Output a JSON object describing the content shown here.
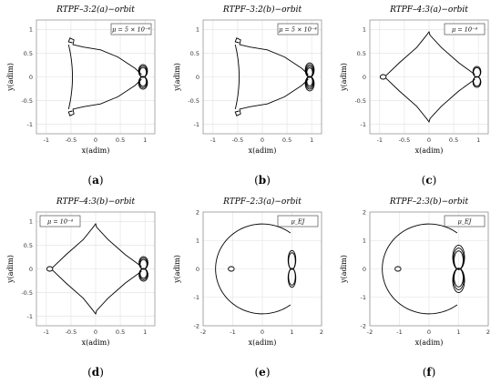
{
  "panels": [
    {
      "id": "a",
      "title": "RTPF–3:2(a)−orbit",
      "legend": "μ = 5 × 10⁻⁴",
      "caption": "a",
      "xlabel": "x(adim)",
      "ylabel": "y(adim)",
      "xlim": [
        -1.2,
        1.2
      ],
      "ylim": [
        -1.2,
        1.2
      ],
      "xticks": [
        -1,
        -0.5,
        0,
        0.5,
        1
      ],
      "yticks": [
        -1,
        -0.5,
        0,
        0.5,
        1
      ],
      "grid": true,
      "legend_position": "top-right"
    },
    {
      "id": "b",
      "title": "RTPF–3:2(b)−orbit",
      "legend": "μ = 5 × 10⁻⁴",
      "caption": "b",
      "xlabel": "x(adim)",
      "ylabel": "y(adim)",
      "xlim": [
        -1.2,
        1.2
      ],
      "ylim": [
        -1.2,
        1.2
      ],
      "xticks": [
        -1,
        -0.5,
        0,
        0.5,
        1
      ],
      "yticks": [
        -1,
        -0.5,
        0,
        0.5,
        1
      ],
      "grid": true,
      "legend_position": "top-right"
    },
    {
      "id": "c",
      "title": "RTPF–4:3(a)−orbit",
      "legend": "μ = 10⁻⁴",
      "caption": "c",
      "xlabel": "x(adim)",
      "ylabel": "y(adim)",
      "xlim": [
        -1.2,
        1.2
      ],
      "ylim": [
        -1.2,
        1.2
      ],
      "xticks": [
        -1,
        -0.5,
        0,
        0.5,
        1
      ],
      "yticks": [
        -1,
        -0.5,
        0,
        0.5,
        1
      ],
      "grid": true,
      "legend_position": "top-right"
    },
    {
      "id": "d",
      "title": "RTPF–4:3(b)−orbit",
      "legend": "μ = 10⁻⁴",
      "caption": "d",
      "xlabel": "x(adim)",
      "ylabel": "y(adim)",
      "xlim": [
        -1.2,
        1.2
      ],
      "ylim": [
        -1.2,
        1.2
      ],
      "xticks": [
        -1,
        -0.5,
        0,
        0.5,
        1
      ],
      "yticks": [
        -1,
        -0.5,
        0,
        0.5,
        1
      ],
      "grid": true,
      "legend_position": "top-left"
    },
    {
      "id": "e",
      "title": "RTPF–2:3(a)−orbit",
      "legend": "μ_EJ",
      "caption": "e",
      "xlabel": "x(adim)",
      "ylabel": "y(adim)",
      "xlim": [
        -2,
        2
      ],
      "ylim": [
        -2,
        2
      ],
      "xticks": [
        -2,
        -1,
        0,
        1,
        2
      ],
      "yticks": [
        -2,
        -1,
        0,
        1,
        2
      ],
      "grid": true,
      "legend_position": "top-right"
    },
    {
      "id": "f",
      "title": "RTPF–2:3(b)−orbit",
      "legend": "μ_EJ",
      "caption": "f",
      "xlabel": "x(adim)",
      "ylabel": "y(adim)",
      "xlim": [
        -2,
        2
      ],
      "ylim": [
        -2,
        2
      ],
      "xticks": [
        -2,
        -1,
        0,
        1,
        2
      ],
      "yticks": [
        -2,
        -1,
        0,
        1,
        2
      ],
      "grid": true,
      "legend_position": "top-right"
    }
  ],
  "chart_data": [
    {
      "type": "line",
      "panel": "a",
      "title": "RTPF–3:2(a)−orbit",
      "xlabel": "x(adim)",
      "ylabel": "y(adim)",
      "xlim": [
        -1.2,
        1.2
      ],
      "ylim": [
        -1.2,
        1.2
      ],
      "series": [
        {
          "values": [
            [
              -0.47,
              0.72
            ],
            [
              -0.55,
              0.74
            ],
            [
              -0.52,
              0.82
            ],
            [
              -0.44,
              0.78
            ],
            [
              -0.46,
              0.68
            ],
            [
              -0.25,
              0.63
            ],
            [
              0.1,
              0.57
            ],
            [
              0.45,
              0.42
            ],
            [
              0.8,
              0.18
            ],
            [
              0.93,
              0.05
            ]
          ]
        }
      ],
      "symmetry": "x-axis",
      "lobes": {
        "center_x": 0.96,
        "rx": 0.09,
        "ry": 0.14,
        "count": 2,
        "loops": 3
      },
      "left_arc_x": -0.55
    },
    {
      "type": "line",
      "panel": "b",
      "title": "RTPF–3:2(b)−orbit",
      "xlabel": "x(adim)",
      "ylabel": "y(adim)",
      "xlim": [
        -1.2,
        1.2
      ],
      "ylim": [
        -1.2,
        1.2
      ],
      "series": [
        {
          "values": [
            [
              -0.47,
              0.72
            ],
            [
              -0.55,
              0.74
            ],
            [
              -0.52,
              0.82
            ],
            [
              -0.44,
              0.78
            ],
            [
              -0.46,
              0.68
            ],
            [
              -0.25,
              0.63
            ],
            [
              0.1,
              0.57
            ],
            [
              0.45,
              0.42
            ],
            [
              0.8,
              0.18
            ],
            [
              0.93,
              0.05
            ]
          ]
        }
      ],
      "symmetry": "x-axis",
      "lobes": {
        "center_x": 0.96,
        "rx": 0.09,
        "ry": 0.16,
        "count": 2,
        "loops": 4
      },
      "left_arc_x": -0.55
    },
    {
      "type": "line",
      "panel": "c",
      "title": "RTPF–4:3(a)−orbit",
      "xlabel": "x(adim)",
      "ylabel": "y(adim)",
      "xlim": [
        -1.2,
        1.2
      ],
      "ylim": [
        -1.2,
        1.2
      ],
      "series": [
        {
          "values": [
            [
              0.93,
              0.05
            ],
            [
              0.6,
              0.3
            ],
            [
              0.25,
              0.62
            ],
            [
              0.02,
              0.88
            ],
            [
              0.0,
              0.95
            ],
            [
              -0.05,
              0.88
            ],
            [
              -0.25,
              0.62
            ],
            [
              -0.6,
              0.3
            ],
            [
              -0.88,
              0.02
            ]
          ]
        }
      ],
      "symmetry": "x-axis",
      "lobes": {
        "center_x": 0.97,
        "rx": 0.08,
        "ry": 0.12,
        "count": 2,
        "loops": 2
      },
      "left_loop_x": -0.93
    },
    {
      "type": "line",
      "panel": "d",
      "title": "RTPF–4:3(b)−orbit",
      "xlabel": "x(adim)",
      "ylabel": "y(adim)",
      "xlim": [
        -1.2,
        1.2
      ],
      "ylim": [
        -1.2,
        1.2
      ],
      "series": [
        {
          "values": [
            [
              0.93,
              0.05
            ],
            [
              0.6,
              0.3
            ],
            [
              0.25,
              0.62
            ],
            [
              0.02,
              0.88
            ],
            [
              0.0,
              0.95
            ],
            [
              -0.05,
              0.88
            ],
            [
              -0.25,
              0.62
            ],
            [
              -0.6,
              0.3
            ],
            [
              -0.88,
              0.02
            ]
          ]
        }
      ],
      "symmetry": "x-axis",
      "lobes": {
        "center_x": 0.97,
        "rx": 0.09,
        "ry": 0.14,
        "count": 2,
        "loops": 3
      },
      "left_loop_x": -0.93
    },
    {
      "type": "line",
      "panel": "e",
      "title": "RTPF–2:3(a)−orbit",
      "xlabel": "x(adim)",
      "ylabel": "y(adim)",
      "xlim": [
        -2,
        2
      ],
      "ylim": [
        -2,
        2
      ],
      "big_orbit": {
        "cx": 0.0,
        "cy": 0.0,
        "r": 1.58,
        "open_at_x": 0.95
      },
      "lobes": {
        "center_x": 1.0,
        "rx": 0.13,
        "ry": 0.35,
        "count": 2,
        "loops": 2
      },
      "left_loop_x": -1.05
    },
    {
      "type": "line",
      "panel": "f",
      "title": "RTPF–2:3(b)−orbit",
      "xlabel": "x(adim)",
      "ylabel": "y(adim)",
      "xlim": [
        -2,
        2
      ],
      "ylim": [
        -2,
        2
      ],
      "big_orbit": {
        "cx": 0.0,
        "cy": 0.0,
        "r": 1.58,
        "open_at_x": 0.95
      },
      "lobes": {
        "center_x": 1.0,
        "rx": 0.2,
        "ry": 0.45,
        "count": 2,
        "loops": 3
      },
      "left_loop_x": -1.05
    }
  ]
}
